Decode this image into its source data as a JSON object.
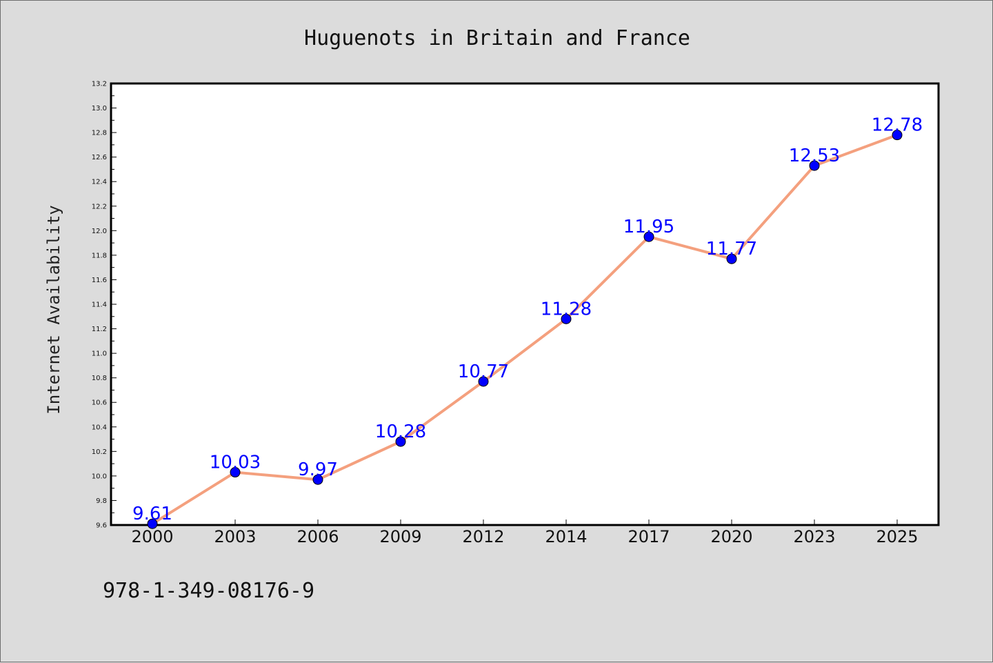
{
  "chart_data": {
    "type": "line",
    "title": "Huguenots in Britain and France",
    "xlabel": "",
    "ylabel": "Internet Availability",
    "categories": [
      "2000",
      "2003",
      "2006",
      "2009",
      "2012",
      "2014",
      "2017",
      "2020",
      "2023",
      "2025"
    ],
    "series": [
      {
        "values": [
          9.61,
          10.03,
          9.97,
          10.28,
          10.77,
          11.28,
          11.95,
          11.77,
          12.53,
          12.78
        ],
        "data_labels": [
          "9.61",
          "10.03",
          "9.97",
          "10.28",
          "10.77",
          "11.28",
          "11.95",
          "11.77",
          "12.53",
          "12.78"
        ]
      }
    ],
    "ylim": [
      9.6,
      13.2
    ],
    "yticks": [
      "9.6",
      "9.8",
      "10.0",
      "10.2",
      "10.4",
      "10.6",
      "10.8",
      "11.0",
      "11.2",
      "11.4",
      "11.6",
      "11.8",
      "12.0",
      "12.2",
      "12.4",
      "12.6",
      "12.8",
      "13.0",
      "13.2"
    ],
    "grid": false,
    "legend": "none",
    "colors": {
      "line": "#f4a07e",
      "marker": "#0000ff",
      "data_label": "#0000ff",
      "background": "#dcdcdc",
      "plot_area": "#ffffff"
    }
  },
  "footer_code": "978-1-349-08176-9"
}
